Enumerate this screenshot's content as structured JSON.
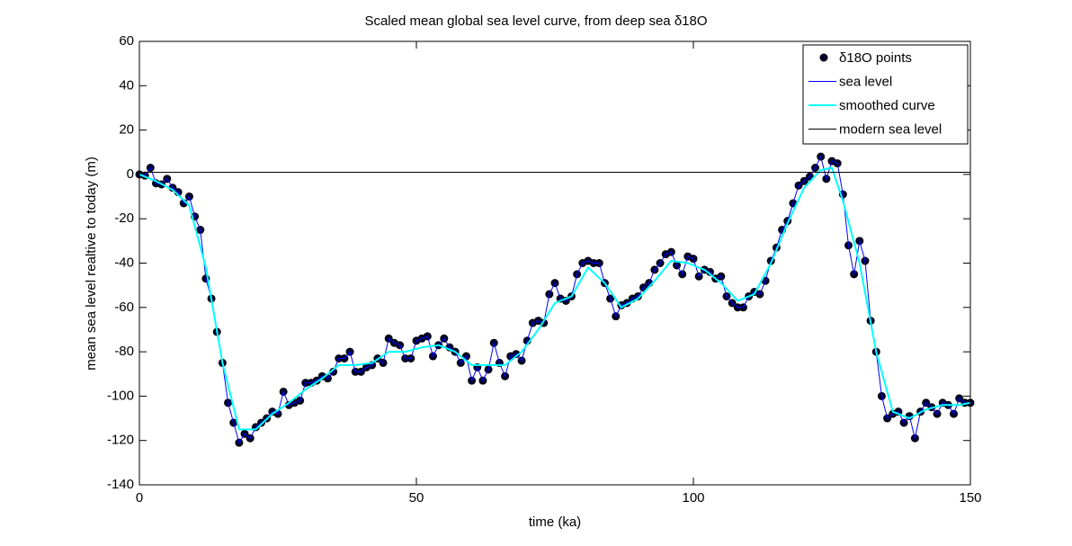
{
  "chart_data": {
    "type": "line",
    "title": "Scaled mean global sea level curve, from deep sea  δ18O",
    "xlabel": "time (ka)",
    "ylabel": "mean sea level realtive to today (m)",
    "xlim": [
      0,
      150
    ],
    "xticks": [
      0,
      50,
      100,
      150
    ],
    "ylim": [
      -140,
      60
    ],
    "yticks": [
      -140,
      -120,
      -100,
      -80,
      -60,
      -40,
      -20,
      0,
      20,
      40,
      60
    ],
    "grid": false,
    "legend": "northeast",
    "series": [
      {
        "name": "δ18O points",
        "style": "markers",
        "color": "#000033",
        "x": [
          0,
          1,
          2,
          3,
          4,
          5,
          6,
          7,
          8,
          9,
          10,
          11,
          12,
          13,
          14,
          15,
          16,
          17,
          18,
          19,
          20,
          21,
          22,
          23,
          24,
          25,
          26,
          27,
          28,
          29,
          30,
          31,
          32,
          33,
          34,
          35,
          36,
          37,
          38,
          39,
          40,
          41,
          42,
          43,
          44,
          45,
          46,
          47,
          48,
          49,
          50,
          51,
          52,
          53,
          54,
          55,
          56,
          57,
          58,
          59,
          60,
          61,
          62,
          63,
          64,
          65,
          66,
          67,
          68,
          69,
          70,
          71,
          72,
          73,
          74,
          75,
          76,
          77,
          78,
          79,
          80,
          81,
          82,
          83,
          84,
          85,
          86,
          87,
          88,
          89,
          90,
          91,
          92,
          93,
          94,
          95,
          96,
          97,
          98,
          99,
          100,
          101,
          102,
          103,
          104,
          105,
          106,
          107,
          108,
          109,
          110,
          111,
          112,
          113,
          114,
          115,
          116,
          117,
          118,
          119,
          120,
          121,
          122,
          123,
          124,
          125,
          126,
          127,
          128,
          129,
          130,
          131,
          132,
          133,
          134,
          135,
          136,
          137,
          138,
          139,
          140,
          141,
          142,
          143,
          144,
          145,
          146,
          147,
          148,
          149,
          150
        ],
        "values": [
          0,
          -0.5,
          3,
          -4,
          -4.5,
          -2,
          -6,
          -8,
          -13,
          -10,
          -19,
          -25,
          -47,
          -56,
          -71,
          -85,
          -103,
          -112,
          -121,
          -117,
          -119,
          -114,
          -112,
          -110,
          -107,
          -108,
          -98,
          -104,
          -103,
          -102,
          -94,
          -94,
          -93,
          -91,
          -92,
          -89,
          -83,
          -83,
          -80,
          -89,
          -89,
          -87,
          -86,
          -83,
          -85,
          -74,
          -76,
          -77,
          -83,
          -83,
          -75,
          -74,
          -73,
          -82,
          -77,
          -74,
          -78,
          -80,
          -85,
          -82,
          -93,
          -87,
          -93,
          -88,
          -76,
          -85,
          -91,
          -82,
          -81,
          -84,
          -75,
          -67,
          -66,
          -67,
          -54,
          -49,
          -56,
          -57,
          -55,
          -45,
          -40,
          -39,
          -40,
          -40,
          -49,
          -56,
          -64,
          -59,
          -58,
          -56,
          -55,
          -51,
          -49,
          -43,
          -40,
          -36,
          -35,
          -41,
          -45,
          -37,
          -38,
          -46,
          -43,
          -44,
          -47,
          -46,
          -55,
          -58,
          -60,
          -60,
          -55,
          -53,
          -54,
          -48,
          -39,
          -33,
          -25,
          -21,
          -13,
          -5,
          -3,
          -1,
          3,
          8,
          -2,
          6,
          5,
          -9,
          -32,
          -45,
          -30,
          -39,
          -66,
          -80,
          -100,
          -110,
          -108,
          -107,
          -112,
          -109,
          -119,
          -107,
          -103,
          -105,
          -108,
          -103,
          -104,
          -108,
          -101,
          -103,
          -103
        ]
      },
      {
        "name": "sea level",
        "style": "line",
        "color": "#0000ff",
        "width": 1,
        "x": [
          0,
          1,
          2,
          3,
          4,
          5,
          6,
          7,
          8,
          9,
          10,
          11,
          12,
          13,
          14,
          15,
          16,
          17,
          18,
          19,
          20,
          21,
          22,
          23,
          24,
          25,
          26,
          27,
          28,
          29,
          30,
          31,
          32,
          33,
          34,
          35,
          36,
          37,
          38,
          39,
          40,
          41,
          42,
          43,
          44,
          45,
          46,
          47,
          48,
          49,
          50,
          51,
          52,
          53,
          54,
          55,
          56,
          57,
          58,
          59,
          60,
          61,
          62,
          63,
          64,
          65,
          66,
          67,
          68,
          69,
          70,
          71,
          72,
          73,
          74,
          75,
          76,
          77,
          78,
          79,
          80,
          81,
          82,
          83,
          84,
          85,
          86,
          87,
          88,
          89,
          90,
          91,
          92,
          93,
          94,
          95,
          96,
          97,
          98,
          99,
          100,
          101,
          102,
          103,
          104,
          105,
          106,
          107,
          108,
          109,
          110,
          111,
          112,
          113,
          114,
          115,
          116,
          117,
          118,
          119,
          120,
          121,
          122,
          123,
          124,
          125,
          126,
          127,
          128,
          129,
          130,
          131,
          132,
          133,
          134,
          135,
          136,
          137,
          138,
          139,
          140,
          141,
          142,
          143,
          144,
          145,
          146,
          147,
          148,
          149,
          150
        ],
        "values": [
          0,
          -0.5,
          3,
          -4,
          -4.5,
          -2,
          -6,
          -8,
          -13,
          -10,
          -19,
          -25,
          -47,
          -56,
          -71,
          -85,
          -103,
          -112,
          -121,
          -117,
          -119,
          -114,
          -112,
          -110,
          -107,
          -108,
          -98,
          -104,
          -103,
          -102,
          -94,
          -94,
          -93,
          -91,
          -92,
          -89,
          -83,
          -83,
          -80,
          -89,
          -89,
          -87,
          -86,
          -83,
          -85,
          -74,
          -76,
          -77,
          -83,
          -83,
          -75,
          -74,
          -73,
          -82,
          -77,
          -74,
          -78,
          -80,
          -85,
          -82,
          -93,
          -87,
          -93,
          -88,
          -76,
          -85,
          -91,
          -82,
          -81,
          -84,
          -75,
          -67,
          -66,
          -67,
          -54,
          -49,
          -56,
          -57,
          -55,
          -45,
          -40,
          -39,
          -40,
          -40,
          -49,
          -56,
          -64,
          -59,
          -58,
          -56,
          -55,
          -51,
          -49,
          -43,
          -40,
          -36,
          -35,
          -41,
          -45,
          -37,
          -38,
          -46,
          -43,
          -44,
          -47,
          -46,
          -55,
          -58,
          -60,
          -60,
          -55,
          -53,
          -54,
          -48,
          -39,
          -33,
          -25,
          -21,
          -13,
          -5,
          -3,
          -1,
          3,
          8,
          -2,
          6,
          5,
          -9,
          -32,
          -45,
          -30,
          -39,
          -66,
          -80,
          -100,
          -110,
          -108,
          -107,
          -112,
          -109,
          -119,
          -107,
          -103,
          -105,
          -108,
          -103,
          -104,
          -108,
          -101,
          -103,
          -103
        ]
      },
      {
        "name": "smoothed curve",
        "style": "line",
        "color": "#00ffff",
        "width": 2,
        "x": [
          0,
          3,
          6,
          9,
          12,
          15,
          18,
          21,
          24,
          27,
          30,
          33,
          36,
          39,
          42,
          45,
          48,
          51,
          54,
          57,
          60,
          63,
          66,
          69,
          72,
          75,
          78,
          81,
          84,
          87,
          90,
          93,
          96,
          99,
          102,
          105,
          108,
          111,
          114,
          117,
          120,
          123,
          125,
          127,
          130,
          133,
          136,
          139,
          142,
          145,
          148,
          150
        ],
        "values": [
          0,
          -3,
          -7,
          -14,
          -42,
          -85,
          -115,
          -115,
          -108,
          -103,
          -97,
          -92,
          -86,
          -86,
          -85,
          -80,
          -80,
          -78,
          -77,
          -80,
          -86,
          -86,
          -86,
          -80,
          -70,
          -58,
          -55,
          -42,
          -49,
          -60,
          -56,
          -48,
          -39,
          -40,
          -43,
          -49,
          -57,
          -54,
          -40,
          -22,
          -6,
          2,
          3,
          -12,
          -40,
          -80,
          -107,
          -110,
          -106,
          -104,
          -104,
          -103
        ]
      },
      {
        "name": "modern sea level",
        "style": "line",
        "color": "#000000",
        "width": 1,
        "x": [
          0,
          150
        ],
        "values": [
          1,
          1
        ]
      }
    ]
  }
}
